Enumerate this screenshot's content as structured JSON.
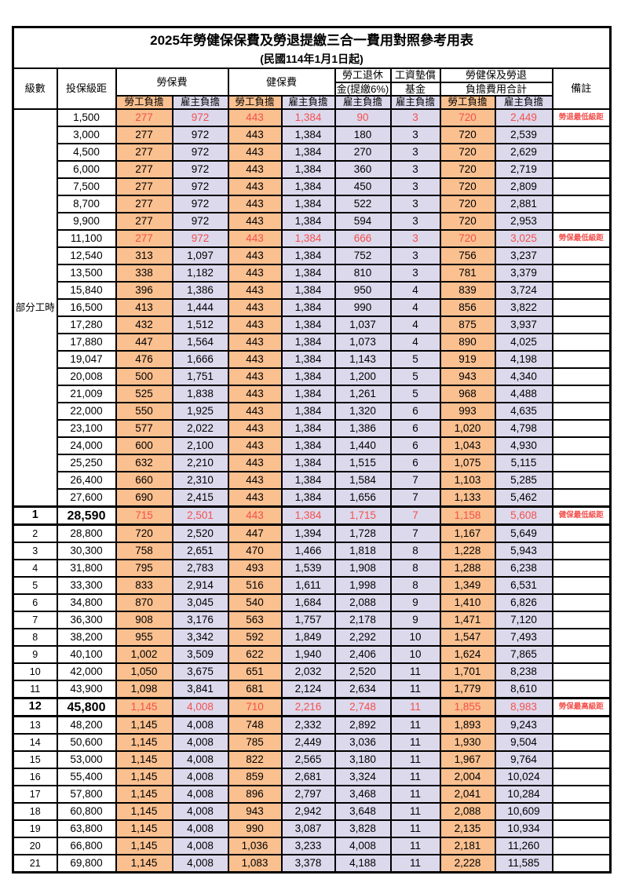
{
  "title": {
    "line1": "2025年勞健保保費及勞退提繳三合一費用對照參考用表",
    "line2": "(民國114年1月1日起)"
  },
  "colors": {
    "employee_cell_bg": "#FAC090",
    "employer_cell_bg": "#DCD9ED",
    "highlight_text": "#F4504C",
    "border": "#000000"
  },
  "table": {
    "headers": {
      "level": "級數",
      "bracket": "投保級距",
      "labor": "勞保費",
      "health": "健保費",
      "pension_1": "勞工退休",
      "pension_2": "金(提繳6%)",
      "fund_1": "工資墊償",
      "fund_2": "基金",
      "total_1": "勞健保及勞退",
      "total_2": "負擔費用合計",
      "emp": "勞工負擔",
      "er": "雇主負擔",
      "note": "備註"
    },
    "part_time_label": "部分工時",
    "rows": [
      {
        "lv": "",
        "br": "1,500",
        "a": "277",
        "b": "972",
        "c": "443",
        "d": "1,384",
        "e": "90",
        "f": "3",
        "g": "720",
        "h": "2,449",
        "note": "勞退最低級距",
        "red": true,
        "big": false
      },
      {
        "lv": "",
        "br": "3,000",
        "a": "277",
        "b": "972",
        "c": "443",
        "d": "1,384",
        "e": "180",
        "f": "3",
        "g": "720",
        "h": "2,539",
        "note": "",
        "red": false,
        "big": false
      },
      {
        "lv": "",
        "br": "4,500",
        "a": "277",
        "b": "972",
        "c": "443",
        "d": "1,384",
        "e": "270",
        "f": "3",
        "g": "720",
        "h": "2,629",
        "note": "",
        "red": false,
        "big": false
      },
      {
        "lv": "",
        "br": "6,000",
        "a": "277",
        "b": "972",
        "c": "443",
        "d": "1,384",
        "e": "360",
        "f": "3",
        "g": "720",
        "h": "2,719",
        "note": "",
        "red": false,
        "big": false
      },
      {
        "lv": "",
        "br": "7,500",
        "a": "277",
        "b": "972",
        "c": "443",
        "d": "1,384",
        "e": "450",
        "f": "3",
        "g": "720",
        "h": "2,809",
        "note": "",
        "red": false,
        "big": false
      },
      {
        "lv": "",
        "br": "8,700",
        "a": "277",
        "b": "972",
        "c": "443",
        "d": "1,384",
        "e": "522",
        "f": "3",
        "g": "720",
        "h": "2,881",
        "note": "",
        "red": false,
        "big": false
      },
      {
        "lv": "",
        "br": "9,900",
        "a": "277",
        "b": "972",
        "c": "443",
        "d": "1,384",
        "e": "594",
        "f": "3",
        "g": "720",
        "h": "2,953",
        "note": "",
        "red": false,
        "big": false
      },
      {
        "lv": "",
        "br": "11,100",
        "a": "277",
        "b": "972",
        "c": "443",
        "d": "1,384",
        "e": "666",
        "f": "3",
        "g": "720",
        "h": "3,025",
        "note": "勞保最低級距",
        "red": true,
        "big": false
      },
      {
        "lv": "",
        "br": "12,540",
        "a": "313",
        "b": "1,097",
        "c": "443",
        "d": "1,384",
        "e": "752",
        "f": "3",
        "g": "756",
        "h": "3,237",
        "note": "",
        "red": false,
        "big": false
      },
      {
        "lv": "",
        "br": "13,500",
        "a": "338",
        "b": "1,182",
        "c": "443",
        "d": "1,384",
        "e": "810",
        "f": "3",
        "g": "781",
        "h": "3,379",
        "note": "",
        "red": false,
        "big": false
      },
      {
        "lv": "",
        "br": "15,840",
        "a": "396",
        "b": "1,386",
        "c": "443",
        "d": "1,384",
        "e": "950",
        "f": "4",
        "g": "839",
        "h": "3,724",
        "note": "",
        "red": false,
        "big": false
      },
      {
        "lv": "",
        "br": "16,500",
        "a": "413",
        "b": "1,444",
        "c": "443",
        "d": "1,384",
        "e": "990",
        "f": "4",
        "g": "856",
        "h": "3,822",
        "note": "",
        "red": false,
        "big": false
      },
      {
        "lv": "",
        "br": "17,280",
        "a": "432",
        "b": "1,512",
        "c": "443",
        "d": "1,384",
        "e": "1,037",
        "f": "4",
        "g": "875",
        "h": "3,937",
        "note": "",
        "red": false,
        "big": false
      },
      {
        "lv": "",
        "br": "17,880",
        "a": "447",
        "b": "1,564",
        "c": "443",
        "d": "1,384",
        "e": "1,073",
        "f": "4",
        "g": "890",
        "h": "4,025",
        "note": "",
        "red": false,
        "big": false
      },
      {
        "lv": "",
        "br": "19,047",
        "a": "476",
        "b": "1,666",
        "c": "443",
        "d": "1,384",
        "e": "1,143",
        "f": "5",
        "g": "919",
        "h": "4,198",
        "note": "",
        "red": false,
        "big": false
      },
      {
        "lv": "",
        "br": "20,008",
        "a": "500",
        "b": "1,751",
        "c": "443",
        "d": "1,384",
        "e": "1,200",
        "f": "5",
        "g": "943",
        "h": "4,340",
        "note": "",
        "red": false,
        "big": false
      },
      {
        "lv": "",
        "br": "21,009",
        "a": "525",
        "b": "1,838",
        "c": "443",
        "d": "1,384",
        "e": "1,261",
        "f": "5",
        "g": "968",
        "h": "4,488",
        "note": "",
        "red": false,
        "big": false
      },
      {
        "lv": "",
        "br": "22,000",
        "a": "550",
        "b": "1,925",
        "c": "443",
        "d": "1,384",
        "e": "1,320",
        "f": "6",
        "g": "993",
        "h": "4,635",
        "note": "",
        "red": false,
        "big": false
      },
      {
        "lv": "",
        "br": "23,100",
        "a": "577",
        "b": "2,022",
        "c": "443",
        "d": "1,384",
        "e": "1,386",
        "f": "6",
        "g": "1,020",
        "h": "4,798",
        "note": "",
        "red": false,
        "big": false
      },
      {
        "lv": "",
        "br": "24,000",
        "a": "600",
        "b": "2,100",
        "c": "443",
        "d": "1,384",
        "e": "1,440",
        "f": "6",
        "g": "1,043",
        "h": "4,930",
        "note": "",
        "red": false,
        "big": false
      },
      {
        "lv": "",
        "br": "25,250",
        "a": "632",
        "b": "2,210",
        "c": "443",
        "d": "1,384",
        "e": "1,515",
        "f": "6",
        "g": "1,075",
        "h": "5,115",
        "note": "",
        "red": false,
        "big": false
      },
      {
        "lv": "",
        "br": "26,400",
        "a": "660",
        "b": "2,310",
        "c": "443",
        "d": "1,384",
        "e": "1,584",
        "f": "7",
        "g": "1,103",
        "h": "5,285",
        "note": "",
        "red": false,
        "big": false
      },
      {
        "lv": "",
        "br": "27,600",
        "a": "690",
        "b": "2,415",
        "c": "443",
        "d": "1,384",
        "e": "1,656",
        "f": "7",
        "g": "1,133",
        "h": "5,462",
        "note": "",
        "red": false,
        "big": false
      },
      {
        "lv": "1",
        "br": "28,590",
        "a": "715",
        "b": "2,501",
        "c": "443",
        "d": "1,384",
        "e": "1,715",
        "f": "7",
        "g": "1,158",
        "h": "5,608",
        "note": "健保最低級距",
        "red": true,
        "big": true
      },
      {
        "lv": "2",
        "br": "28,800",
        "a": "720",
        "b": "2,520",
        "c": "447",
        "d": "1,394",
        "e": "1,728",
        "f": "7",
        "g": "1,167",
        "h": "5,649",
        "note": "",
        "red": false,
        "big": false
      },
      {
        "lv": "3",
        "br": "30,300",
        "a": "758",
        "b": "2,651",
        "c": "470",
        "d": "1,466",
        "e": "1,818",
        "f": "8",
        "g": "1,228",
        "h": "5,943",
        "note": "",
        "red": false,
        "big": false
      },
      {
        "lv": "4",
        "br": "31,800",
        "a": "795",
        "b": "2,783",
        "c": "493",
        "d": "1,539",
        "e": "1,908",
        "f": "8",
        "g": "1,288",
        "h": "6,238",
        "note": "",
        "red": false,
        "big": false
      },
      {
        "lv": "5",
        "br": "33,300",
        "a": "833",
        "b": "2,914",
        "c": "516",
        "d": "1,611",
        "e": "1,998",
        "f": "8",
        "g": "1,349",
        "h": "6,531",
        "note": "",
        "red": false,
        "big": false
      },
      {
        "lv": "6",
        "br": "34,800",
        "a": "870",
        "b": "3,045",
        "c": "540",
        "d": "1,684",
        "e": "2,088",
        "f": "9",
        "g": "1,410",
        "h": "6,826",
        "note": "",
        "red": false,
        "big": false
      },
      {
        "lv": "7",
        "br": "36,300",
        "a": "908",
        "b": "3,176",
        "c": "563",
        "d": "1,757",
        "e": "2,178",
        "f": "9",
        "g": "1,471",
        "h": "7,120",
        "note": "",
        "red": false,
        "big": false
      },
      {
        "lv": "8",
        "br": "38,200",
        "a": "955",
        "b": "3,342",
        "c": "592",
        "d": "1,849",
        "e": "2,292",
        "f": "10",
        "g": "1,547",
        "h": "7,493",
        "note": "",
        "red": false,
        "big": false
      },
      {
        "lv": "9",
        "br": "40,100",
        "a": "1,002",
        "b": "3,509",
        "c": "622",
        "d": "1,940",
        "e": "2,406",
        "f": "10",
        "g": "1,624",
        "h": "7,865",
        "note": "",
        "red": false,
        "big": false
      },
      {
        "lv": "10",
        "br": "42,000",
        "a": "1,050",
        "b": "3,675",
        "c": "651",
        "d": "2,032",
        "e": "2,520",
        "f": "11",
        "g": "1,701",
        "h": "8,238",
        "note": "",
        "red": false,
        "big": false
      },
      {
        "lv": "11",
        "br": "43,900",
        "a": "1,098",
        "b": "3,841",
        "c": "681",
        "d": "2,124",
        "e": "2,634",
        "f": "11",
        "g": "1,779",
        "h": "8,610",
        "note": "",
        "red": false,
        "big": false
      },
      {
        "lv": "12",
        "br": "45,800",
        "a": "1,145",
        "b": "4,008",
        "c": "710",
        "d": "2,216",
        "e": "2,748",
        "f": "11",
        "g": "1,855",
        "h": "8,983",
        "note": "勞保最高級距",
        "red": true,
        "big": true
      },
      {
        "lv": "13",
        "br": "48,200",
        "a": "1,145",
        "b": "4,008",
        "c": "748",
        "d": "2,332",
        "e": "2,892",
        "f": "11",
        "g": "1,893",
        "h": "9,243",
        "note": "",
        "red": false,
        "big": false
      },
      {
        "lv": "14",
        "br": "50,600",
        "a": "1,145",
        "b": "4,008",
        "c": "785",
        "d": "2,449",
        "e": "3,036",
        "f": "11",
        "g": "1,930",
        "h": "9,504",
        "note": "",
        "red": false,
        "big": false
      },
      {
        "lv": "15",
        "br": "53,000",
        "a": "1,145",
        "b": "4,008",
        "c": "822",
        "d": "2,565",
        "e": "3,180",
        "f": "11",
        "g": "1,967",
        "h": "9,764",
        "note": "",
        "red": false,
        "big": false
      },
      {
        "lv": "16",
        "br": "55,400",
        "a": "1,145",
        "b": "4,008",
        "c": "859",
        "d": "2,681",
        "e": "3,324",
        "f": "11",
        "g": "2,004",
        "h": "10,024",
        "note": "",
        "red": false,
        "big": false
      },
      {
        "lv": "17",
        "br": "57,800",
        "a": "1,145",
        "b": "4,008",
        "c": "896",
        "d": "2,797",
        "e": "3,468",
        "f": "11",
        "g": "2,041",
        "h": "10,284",
        "note": "",
        "red": false,
        "big": false
      },
      {
        "lv": "18",
        "br": "60,800",
        "a": "1,145",
        "b": "4,008",
        "c": "943",
        "d": "2,942",
        "e": "3,648",
        "f": "11",
        "g": "2,088",
        "h": "10,609",
        "note": "",
        "red": false,
        "big": false
      },
      {
        "lv": "19",
        "br": "63,800",
        "a": "1,145",
        "b": "4,008",
        "c": "990",
        "d": "3,087",
        "e": "3,828",
        "f": "11",
        "g": "2,135",
        "h": "10,934",
        "note": "",
        "red": false,
        "big": false
      },
      {
        "lv": "20",
        "br": "66,800",
        "a": "1,145",
        "b": "4,008",
        "c": "1,036",
        "d": "3,233",
        "e": "4,008",
        "f": "11",
        "g": "2,181",
        "h": "11,260",
        "note": "",
        "red": false,
        "big": false
      },
      {
        "lv": "21",
        "br": "69,800",
        "a": "1,145",
        "b": "4,008",
        "c": "1,083",
        "d": "3,378",
        "e": "4,188",
        "f": "11",
        "g": "2,228",
        "h": "11,585",
        "note": "",
        "red": false,
        "big": false
      }
    ]
  }
}
